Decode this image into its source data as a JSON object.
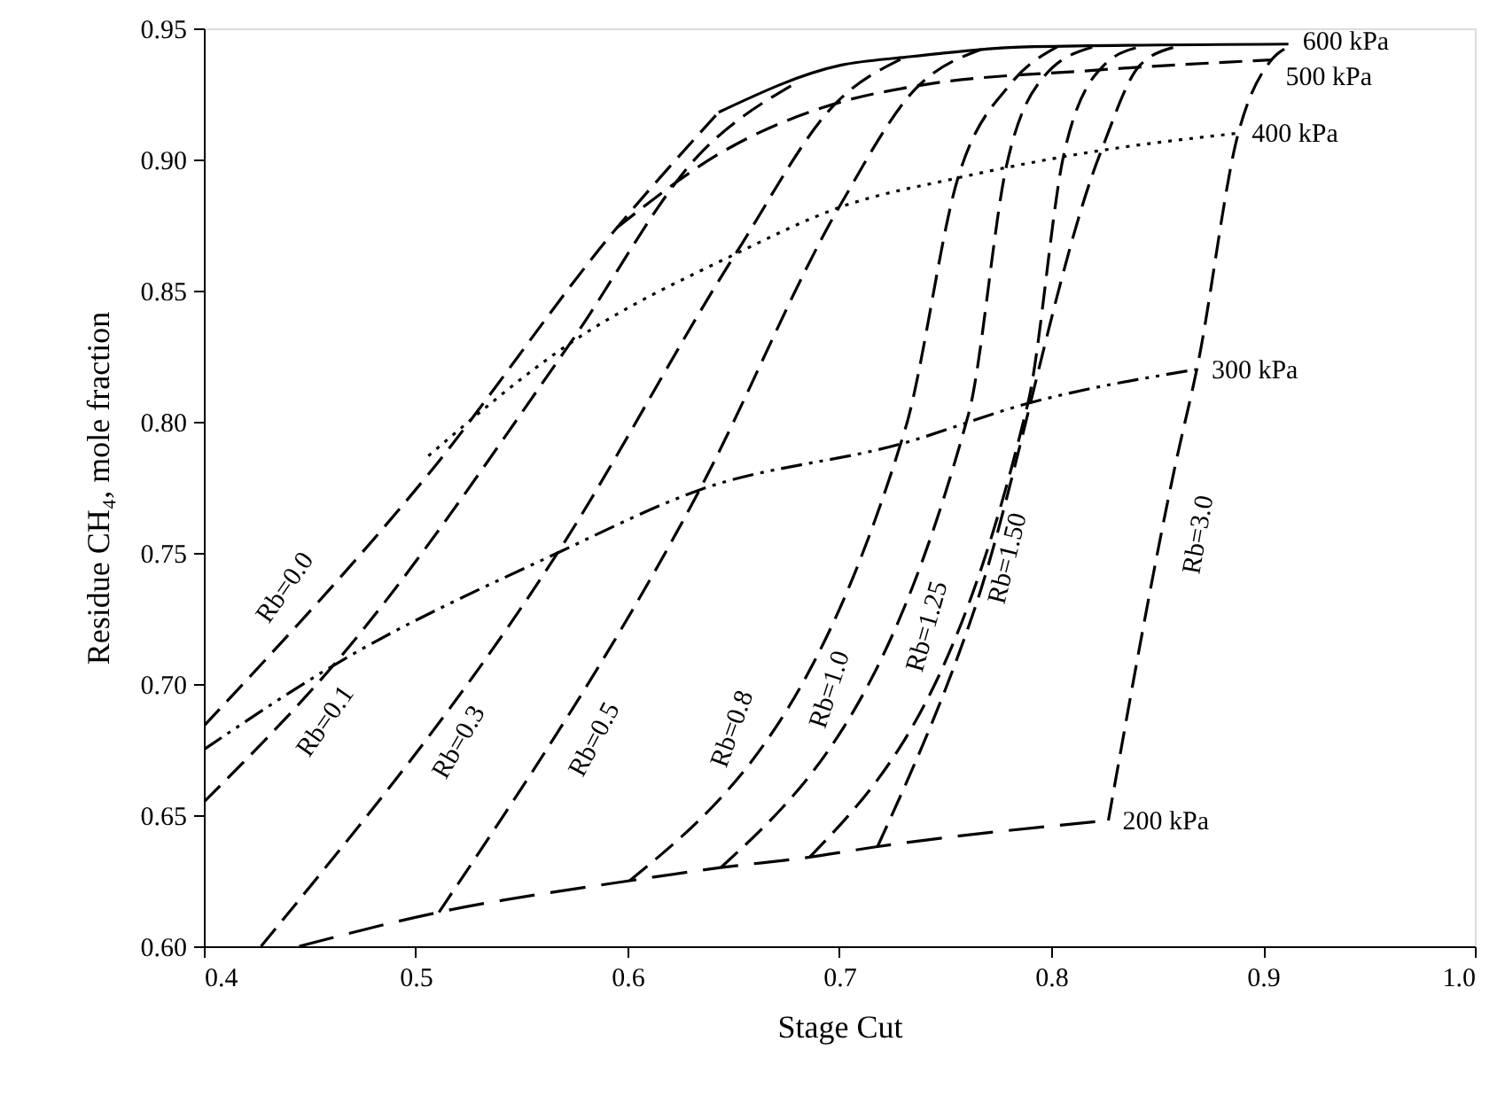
{
  "chart_data": {
    "type": "line",
    "xlabel": "Stage Cut",
    "ylabel": "Residue CH₄, mole fraction",
    "xlim": [
      0.4,
      1.0
    ],
    "ylim": [
      0.6,
      0.95
    ],
    "xticks": [
      0.4,
      0.5,
      0.6,
      0.7,
      0.8,
      0.9,
      {
        "value": 1,
        "label": "1.0"
      }
    ],
    "yticks": [
      {
        "value": 0.6,
        "label": "0.60"
      },
      {
        "value": 0.65,
        "label": "0.65"
      },
      {
        "value": 0.7,
        "label": "0.70"
      },
      {
        "value": 0.75,
        "label": "0.75"
      },
      {
        "value": 0.8,
        "label": "0.80"
      },
      {
        "value": 0.85,
        "label": "0.85"
      },
      {
        "value": 0.9,
        "label": "0.90"
      },
      {
        "value": 0.95,
        "label": "0.95"
      }
    ],
    "grid": false,
    "series": [
      {
        "name": "Rb=0.0",
        "color": "#000000",
        "line_style": "dashed",
        "x": [
          0.4,
          0.506,
          0.595,
          0.643
        ],
        "values": [
          0.684,
          0.78,
          0.874,
          0.918
        ]
      },
      {
        "name": "Rb=0.1",
        "color": "#000000",
        "line_style": "dashed",
        "x": [
          0.4,
          0.461,
          0.573,
          0.634,
          0.679
        ],
        "values": [
          0.655,
          0.707,
          0.83,
          0.902,
          0.929
        ]
      },
      {
        "name": "Rb=0.3",
        "color": "#000000",
        "line_style": "dashed",
        "x": [
          0.427,
          0.567,
          0.651,
          0.699,
          0.731
        ],
        "values": [
          0.6,
          0.75,
          0.864,
          0.922,
          0.939
        ]
      },
      {
        "name": "Rb=0.5",
        "color": "#000000",
        "line_style": "dashed",
        "x": [
          0.511,
          0.634,
          0.7,
          0.736,
          0.767
        ],
        "values": [
          0.613,
          0.774,
          0.882,
          0.927,
          0.942
        ]
      },
      {
        "name": "Rb=0.8",
        "color": "#000000",
        "line_style": "dashed",
        "x": [
          0.601,
          0.731,
          0.756,
          0.781,
          0.803
        ],
        "values": [
          0.625,
          0.797,
          0.893,
          0.929,
          0.943
        ]
      },
      {
        "name": "Rb=1.0",
        "color": "#000000",
        "line_style": "dashed",
        "x": [
          0.644,
          0.761,
          0.779,
          0.797,
          0.82
        ],
        "values": [
          0.63,
          0.803,
          0.898,
          0.932,
          0.943
        ]
      },
      {
        "name": "Rb=1.25",
        "color": "#000000",
        "line_style": "dashed",
        "x": [
          0.686,
          0.789,
          0.806,
          0.825,
          0.842
        ],
        "values": [
          0.634,
          0.807,
          0.902,
          0.936,
          0.943
        ]
      },
      {
        "name": "Rb=1.50",
        "color": "#000000",
        "line_style": "dashed",
        "x": [
          0.718,
          0.764,
          0.823,
          0.842,
          0.859
        ],
        "values": [
          0.638,
          0.729,
          0.902,
          0.936,
          0.943
        ]
      },
      {
        "name": "Rb=3.0",
        "color": "#000000",
        "line_style": "dashed",
        "x": [
          0.827,
          0.859,
          0.869,
          0.888,
          0.904,
          0.912
        ],
        "values": [
          0.648,
          0.785,
          0.821,
          0.909,
          0.938,
          0.943
        ]
      },
      {
        "name": "600 kPa",
        "color": "#000000",
        "line_style": "solid",
        "x": [
          0.643,
          0.701,
          0.731,
          0.792,
          0.912
        ],
        "values": [
          0.918,
          0.936,
          0.939,
          0.943,
          0.944
        ]
      },
      {
        "name": "500 kPa",
        "color": "#000000",
        "line_style": "dashed",
        "x": [
          0.595,
          0.645,
          0.701,
          0.736,
          0.82,
          0.904
        ],
        "values": [
          0.874,
          0.903,
          0.922,
          0.928,
          0.934,
          0.938
        ]
      },
      {
        "name": "400 kPa",
        "color": "#000000",
        "line_style": "dotted",
        "x": [
          0.506,
          0.573,
          0.651,
          0.701,
          0.756,
          0.82,
          0.888
        ],
        "values": [
          0.787,
          0.83,
          0.864,
          0.882,
          0.893,
          0.903,
          0.91
        ]
      },
      {
        "name": "300 kPa",
        "color": "#000000",
        "line_style": "dashdot",
        "x": [
          0.4,
          0.461,
          0.567,
          0.634,
          0.731,
          0.789,
          0.869
        ],
        "values": [
          0.675,
          0.707,
          0.75,
          0.774,
          0.792,
          0.807,
          0.82
        ]
      },
      {
        "name": "200 kPa",
        "color": "#000000",
        "line_style": "longdash",
        "x": [
          0.445,
          0.511,
          0.601,
          0.644,
          0.686,
          0.718,
          0.827
        ],
        "values": [
          0.6,
          0.613,
          0.625,
          0.63,
          0.634,
          0.638,
          0.648
        ]
      }
    ]
  }
}
